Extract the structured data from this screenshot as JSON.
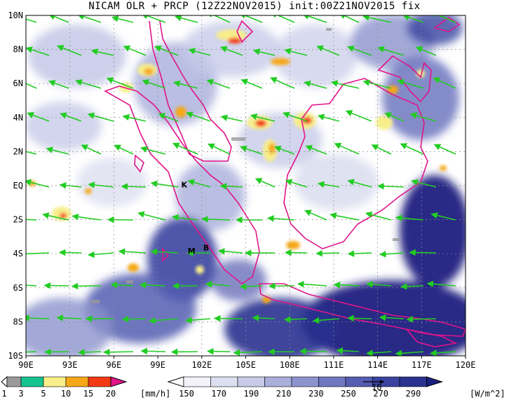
{
  "title": "NICAM OLR + PRCP (12Z22NOV2015) init:00Z21NOV2015 fix",
  "colors": {
    "background": "#ffffff",
    "coastline": "#e0158a",
    "wind_arrow": "#22cc22",
    "olr_dark": "#1a1f80",
    "olr_mid": "#5a63b3",
    "olr_light": "#c7cbe8"
  },
  "axes": {
    "lon_labels": [
      "90E",
      "93E",
      "96E",
      "99E",
      "102E",
      "105E",
      "108E",
      "111E",
      "114E",
      "117E",
      "120E"
    ],
    "lat_labels": [
      "10N",
      "8N",
      "6N",
      "4N",
      "2N",
      "EQ",
      "2S",
      "4S",
      "6S",
      "8S",
      "10S"
    ],
    "lon_range": [
      90,
      120
    ],
    "lat_range": [
      -10,
      10
    ]
  },
  "markers": [
    {
      "label": "K",
      "lon": 100.8,
      "lat": -0.1
    },
    {
      "label": "M",
      "lon": 101.3,
      "lat": -4.0
    },
    {
      "label": "B",
      "lon": 102.3,
      "lat": -3.8
    }
  ],
  "precip_colorbar": {
    "ticks": [
      "1",
      "3",
      "5",
      "10",
      "15",
      "20"
    ],
    "unit": "[mm/h]",
    "colors": [
      "#9a9a9a",
      "#16c28f",
      "#f7ee8a",
      "#f6a818",
      "#f23a14",
      "#e0158a"
    ]
  },
  "olr_colorbar": {
    "ticks": [
      "150",
      "170",
      "190",
      "210",
      "230",
      "250",
      "270",
      "290"
    ],
    "unit": "[W/m^2]",
    "vector_key": "10",
    "colors": [
      "#f2f2fa",
      "#dcdff0",
      "#c7cbe8",
      "#a9aedb",
      "#8c93cd",
      "#6f77bf",
      "#545db1",
      "#3a43a0",
      "#2a3290",
      "#1a1f80"
    ]
  }
}
